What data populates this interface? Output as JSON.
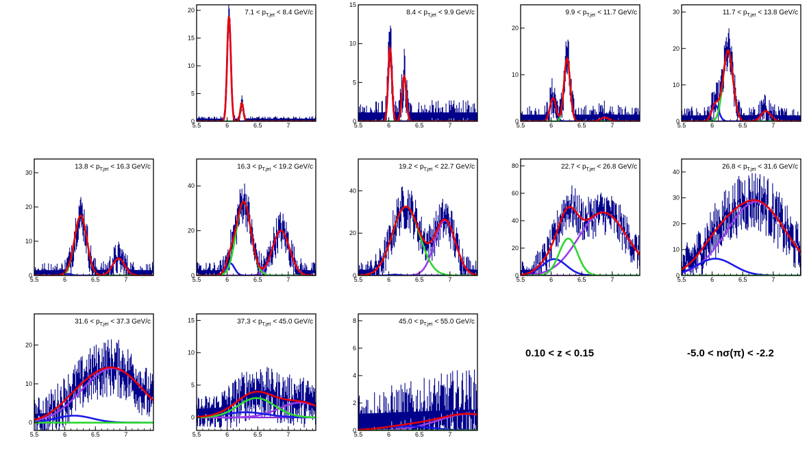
{
  "figure": {
    "z_range_label": "0.10 < z < 0.15",
    "nsigma_range_label": "-5.0 < nσ(π) < -2.2"
  },
  "colors": {
    "data": "#00008b",
    "total_fit": "#e8000b",
    "pion": "#2ed62e",
    "kaon_proton_low": "#1a1ae6",
    "proton": "#9b3ee8",
    "baseline": "#8a2be2"
  },
  "chart_data": [
    {
      "type": "line",
      "title_parts": [
        "7.1 < p",
        "T,jet",
        "< 8.4 GeV/c"
      ],
      "xlim": [
        5.5,
        7.45
      ],
      "ylim": [
        0,
        21
      ],
      "xticks": [
        "5.5",
        "6",
        "6.5",
        "7"
      ],
      "yticks": [
        0,
        5,
        10,
        15,
        20
      ],
      "fits": {
        "blue": {
          "A": 19.0,
          "mu": 6.03,
          "s": 0.03
        },
        "green": {
          "A": 3.3,
          "mu": 6.24,
          "s": 0.025
        },
        "purple": {
          "A": 0,
          "mu": 6.9,
          "s": 0.1
        }
      },
      "noise": 0.4
    },
    {
      "type": "line",
      "title_parts": [
        "8.4 < p",
        "T,jet",
        "< 9.9 GeV/c"
      ],
      "xlim": [
        5.5,
        7.45
      ],
      "ylim": [
        0,
        15
      ],
      "xticks": [
        "5.5",
        "6",
        "6.5",
        "7"
      ],
      "yticks": [
        0,
        5,
        10,
        15
      ],
      "fits": {
        "blue": {
          "A": 9.5,
          "mu": 6.02,
          "s": 0.03
        },
        "green": {
          "A": 5.8,
          "mu": 6.25,
          "s": 0.035
        },
        "purple": {
          "A": 0,
          "mu": 6.9,
          "s": 0.1
        }
      },
      "noise": 1.5
    },
    {
      "type": "line",
      "title_parts": [
        "9.9 < p",
        "T,jet",
        "< 11.7 GeV/c"
      ],
      "xlim": [
        5.5,
        7.45
      ],
      "ylim": [
        0,
        25
      ],
      "xticks": [
        "5.5",
        "6",
        "6.5",
        "7"
      ],
      "yticks": [
        0,
        10,
        20
      ],
      "fits": {
        "blue": {
          "A": 5.0,
          "mu": 6.03,
          "s": 0.05
        },
        "green": {
          "A": 13.5,
          "mu": 6.26,
          "s": 0.05
        },
        "purple": {
          "A": 0.8,
          "mu": 6.88,
          "s": 0.07
        }
      },
      "noise": 2.0
    },
    {
      "type": "line",
      "title_parts": [
        "11.7 < p",
        "T,jet",
        "< 13.8 GeV/c"
      ],
      "xlim": [
        5.5,
        7.45
      ],
      "ylim": [
        0,
        32
      ],
      "xticks": [
        "5.5",
        "6",
        "6.5",
        "7"
      ],
      "yticks": [
        0,
        10,
        20,
        30
      ],
      "fits": {
        "blue": {
          "A": 4.5,
          "mu": 6.05,
          "s": 0.06
        },
        "green": {
          "A": 19.5,
          "mu": 6.26,
          "s": 0.08
        },
        "purple": {
          "A": 2.8,
          "mu": 6.88,
          "s": 0.08
        }
      },
      "noise": 2.3
    },
    {
      "type": "line",
      "title_parts": [
        "13.8 < p",
        "T,jet",
        "< 16.3 GeV/c"
      ],
      "xlim": [
        5.5,
        7.45
      ],
      "ylim": [
        0,
        34
      ],
      "xticks": [
        "5.5",
        "6",
        "6.5",
        "7"
      ],
      "yticks": [
        0,
        10,
        20,
        30
      ],
      "fits": {
        "blue": {
          "A": 0.5,
          "mu": 6.05,
          "s": 0.06
        },
        "green": {
          "A": 17.5,
          "mu": 6.26,
          "s": 0.1
        },
        "purple": {
          "A": 5.0,
          "mu": 6.88,
          "s": 0.1
        }
      },
      "noise": 2.2
    },
    {
      "type": "line",
      "title_parts": [
        "16.3 < p",
        "T,jet",
        "< 19.2 GeV/c"
      ],
      "xlim": [
        5.5,
        7.45
      ],
      "ylim": [
        0,
        52
      ],
      "xticks": [
        "5.5",
        "6",
        "6.5",
        "7"
      ],
      "yticks": [
        0,
        20,
        40
      ],
      "fits": {
        "blue": {
          "A": 5.5,
          "mu": 6.05,
          "s": 0.07
        },
        "green": {
          "A": 33.0,
          "mu": 6.27,
          "s": 0.12
        },
        "purple": {
          "A": 20.0,
          "mu": 6.88,
          "s": 0.14
        }
      },
      "noise": 3.5
    },
    {
      "type": "line",
      "title_parts": [
        "19.2 < p",
        "T,jet",
        "< 22.7 GeV/c"
      ],
      "xlim": [
        5.5,
        7.45
      ],
      "ylim": [
        0,
        55
      ],
      "xticks": [
        "5.5",
        "6",
        "6.5",
        "7"
      ],
      "yticks": [
        0,
        20,
        40
      ],
      "fits": {
        "blue": {
          "A": 0.4,
          "mu": 6.1,
          "s": 0.08
        },
        "green": {
          "A": 32.5,
          "mu": 6.28,
          "s": 0.22
        },
        "purple": {
          "A": 26.0,
          "mu": 6.92,
          "s": 0.17
        }
      },
      "noise": 4.0
    },
    {
      "type": "line",
      "title_parts": [
        "22.7 < p",
        "T,jet",
        "< 26.8 GeV/c"
      ],
      "xlim": [
        5.5,
        7.45
      ],
      "ylim": [
        0,
        85
      ],
      "xticks": [
        "5.5",
        "6",
        "6.5",
        "7"
      ],
      "yticks": [
        0,
        20,
        40,
        60,
        80
      ],
      "fits": {
        "blue": {
          "A": 12.0,
          "mu": 6.05,
          "s": 0.2
        },
        "green": {
          "A": 27.0,
          "mu": 6.28,
          "s": 0.15
        },
        "purple": {
          "A": 46.0,
          "mu": 6.85,
          "s": 0.4
        }
      },
      "noise": 6.0
    },
    {
      "type": "line",
      "title_parts": [
        "26.8 < p",
        "T,jet",
        "< 31.6 GeV/c"
      ],
      "xlim": [
        5.5,
        7.45
      ],
      "ylim": [
        0,
        45
      ],
      "xticks": [
        "5.5",
        "6",
        "6.5",
        "7"
      ],
      "yticks": [
        0,
        10,
        20,
        30,
        40
      ],
      "fits": {
        "blue": {
          "A": 6.5,
          "mu": 6.05,
          "s": 0.3
        },
        "green": {
          "A": 0,
          "mu": 6.3,
          "s": 0.2
        },
        "purple": {
          "A": 28.5,
          "mu": 6.72,
          "s": 0.48
        }
      },
      "noise": 4.5
    },
    {
      "type": "line",
      "title_parts": [
        "31.6 < p",
        "T,jet",
        "< 37.3 GeV/c"
      ],
      "xlim": [
        5.5,
        7.45
      ],
      "ylim": [
        -2,
        28
      ],
      "xticks": [
        "5.5",
        "6",
        "6.5",
        "7"
      ],
      "yticks": [
        0,
        10,
        20
      ],
      "fits": {
        "blue": {
          "A": 1.8,
          "mu": 6.15,
          "s": 0.3
        },
        "green": {
          "A": 0,
          "mu": 6.3,
          "s": 0.2
        },
        "purple": {
          "A": 14.0,
          "mu": 6.78,
          "s": 0.5
        }
      },
      "noise": 3.0
    },
    {
      "type": "line",
      "title_parts": [
        "37.3 < p",
        "T,jet",
        "< 45.0 GeV/c"
      ],
      "xlim": [
        5.5,
        7.45
      ],
      "ylim": [
        -2,
        16
      ],
      "xticks": [
        "5.5",
        "6",
        "6.5",
        "7"
      ],
      "yticks": [
        0,
        5,
        10,
        15
      ],
      "fits": {
        "blue": {
          "A": 0.8,
          "mu": 6.3,
          "s": 0.35
        },
        "green": {
          "A": 3.0,
          "mu": 6.48,
          "s": 0.3
        },
        "purple": {
          "A": 2.3,
          "mu": 7.2,
          "s": 0.35
        }
      },
      "noise": 1.8
    },
    {
      "type": "line",
      "title_parts": [
        "45.0 < p",
        "T,jet",
        "< 55.0 GeV/c"
      ],
      "xlim": [
        5.5,
        7.45
      ],
      "ylim": [
        0,
        8.5
      ],
      "xticks": [
        "5.5",
        "6",
        "6.5",
        "7"
      ],
      "yticks": [
        0,
        2,
        4,
        6,
        8
      ],
      "fits": {
        "blue": {
          "A": 0.3,
          "mu": 6.3,
          "s": 0.4
        },
        "green": {
          "A": 0,
          "mu": 6.5,
          "s": 0.3
        },
        "purple": {
          "A": 1.2,
          "mu": 7.3,
          "s": 0.5
        }
      },
      "noise": 1.6
    }
  ]
}
